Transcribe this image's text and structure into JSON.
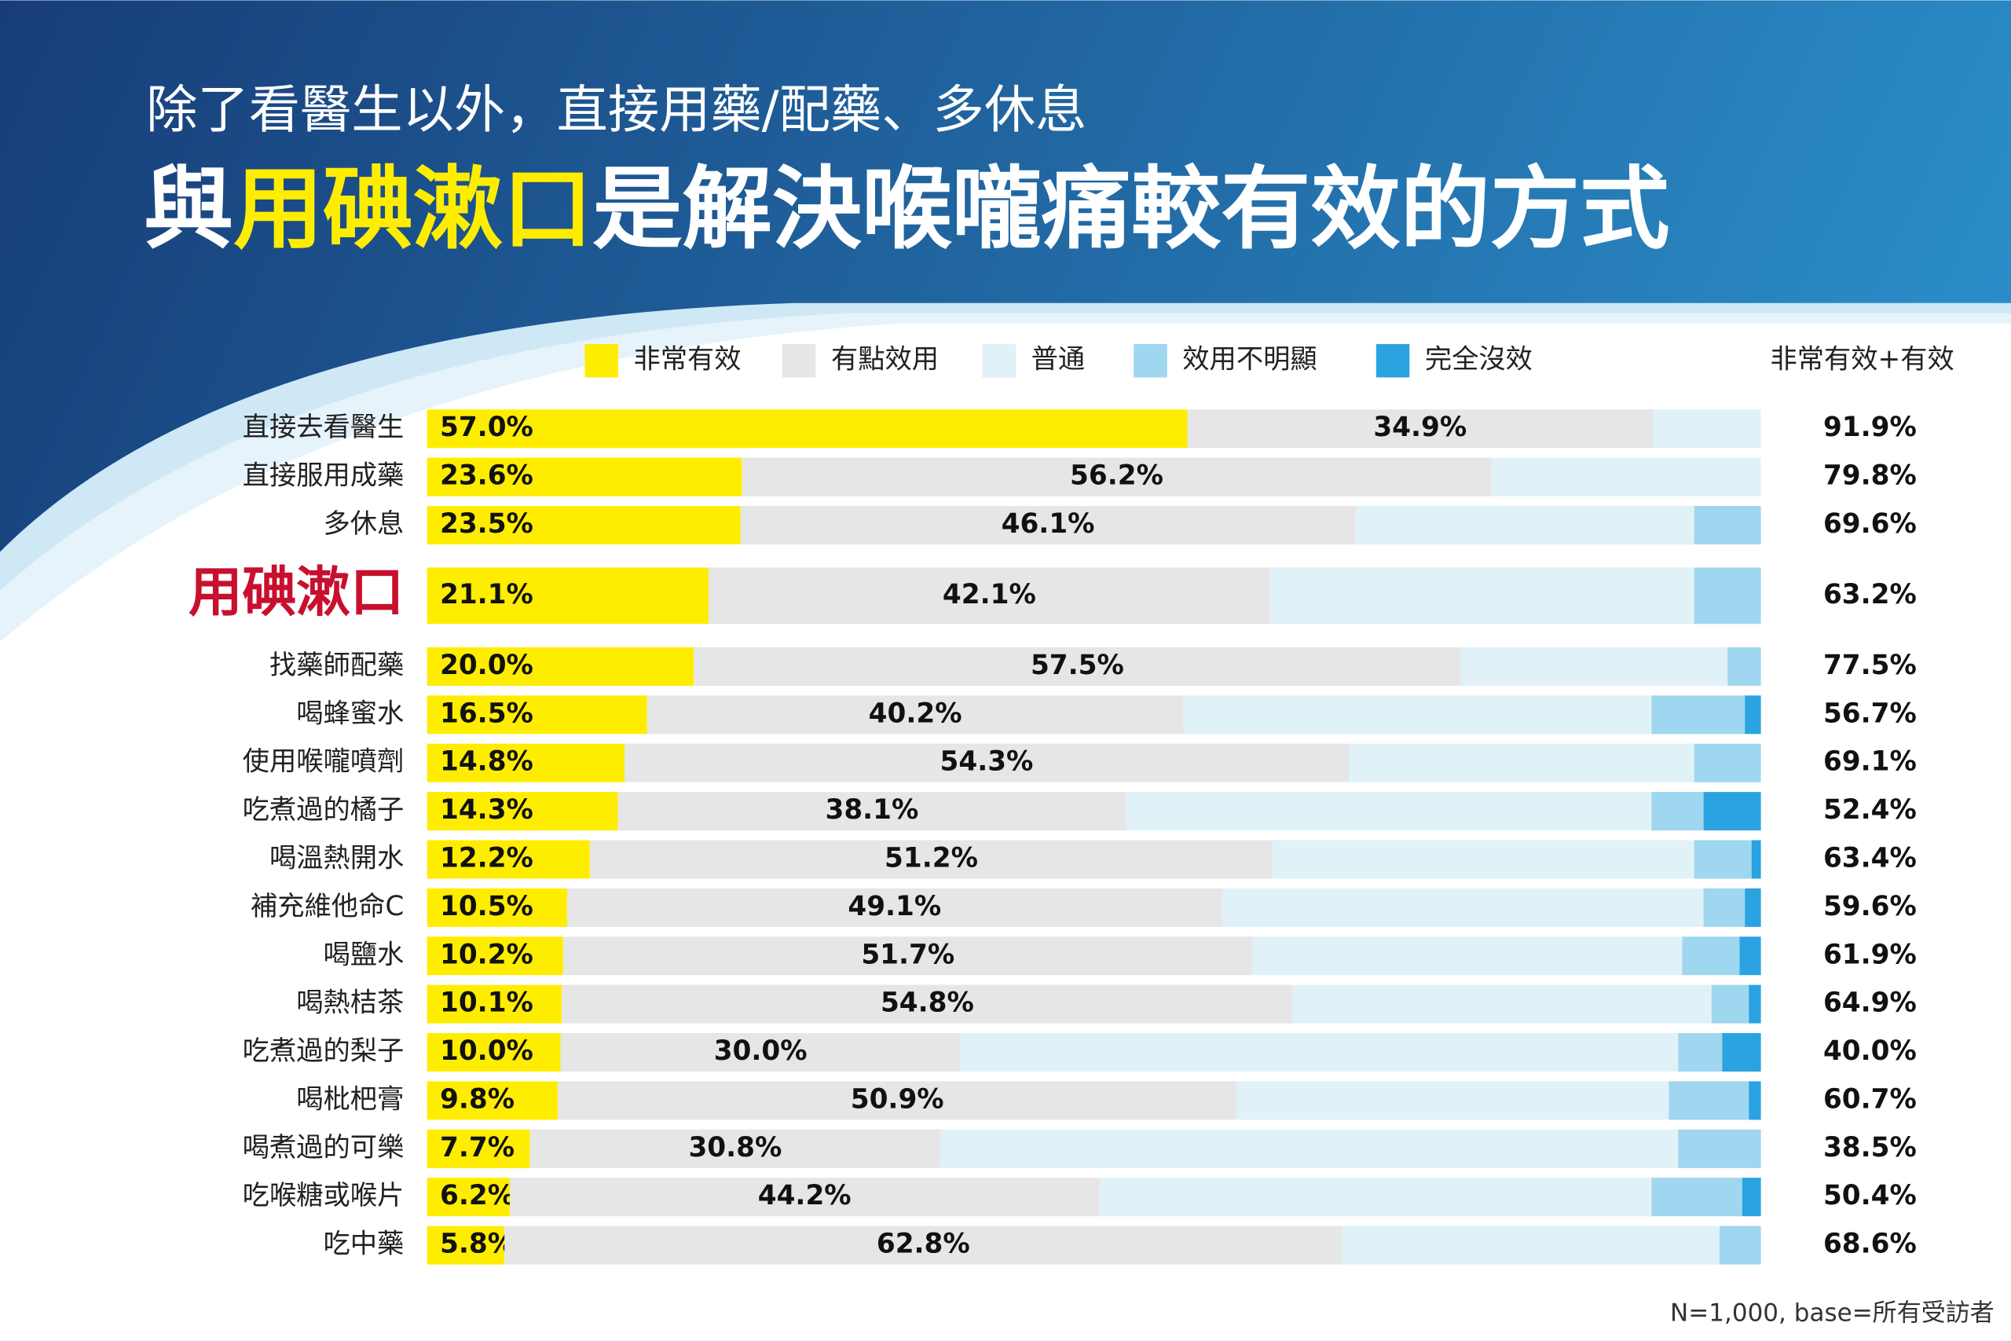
{
  "chart_data": {
    "type": "stacked-bar-100",
    "orientation": "horizontal",
    "subtitle": "除了看醫生以外，直接用藥/配藥、多休息",
    "title_parts": [
      "與",
      "用碘漱口",
      "是解決喉嚨痛較有效的方式"
    ],
    "title_highlight_color": "#ffed00",
    "highlight_category": 3,
    "highlight_color": "#c8102e",
    "note": "N=1,000, base=所有受訪者",
    "xlim": [
      0,
      100
    ],
    "categories": [
      "直接去看醫生",
      "直接服用成藥",
      "多休息",
      "用碘漱口",
      "找藥師配藥",
      "喝蜂蜜水",
      "使用喉嚨噴劑",
      "吃煮過的橘子",
      "喝溫熱開水",
      "補充維他命C",
      "喝鹽水",
      "喝熱桔茶",
      "吃煮過的梨子",
      "喝枇杷膏",
      "喝煮過的可樂",
      "吃喉糖或喉片",
      "吃中藥"
    ],
    "series": [
      {
        "name": "非常有效",
        "color": "#ffed00",
        "values": [
          57.0,
          23.6,
          23.5,
          21.1,
          20.0,
          16.5,
          14.8,
          14.3,
          12.2,
          10.5,
          10.2,
          10.1,
          10.0,
          9.8,
          7.7,
          6.2,
          5.8
        ],
        "value_labels": [
          "57.0%",
          "23.6%",
          "23.5%",
          "21.1%",
          "20.0%",
          "16.5%",
          "14.8%",
          "14.3%",
          "12.2%",
          "10.5%",
          "10.2%",
          "10.1%",
          "10.0%",
          "9.8%",
          "7.7%",
          "6.2%",
          "5.8%"
        ]
      },
      {
        "name": "有點效用",
        "color": "#e6e6e6",
        "values": [
          34.9,
          56.2,
          46.1,
          42.1,
          57.5,
          40.2,
          54.3,
          38.1,
          51.2,
          49.1,
          51.7,
          54.8,
          30.0,
          50.9,
          30.8,
          44.2,
          62.8
        ],
        "value_labels": [
          "34.9%",
          "56.2%",
          "46.1%",
          "42.1%",
          "57.5%",
          "40.2%",
          "54.3%",
          "38.1%",
          "51.2%",
          "49.1%",
          "51.7%",
          "54.8%",
          "30.0%",
          "50.9%",
          "30.8%",
          "44.2%",
          "62.8%"
        ]
      },
      {
        "name": "普通",
        "color": "#e0f1f8",
        "values": [
          8.1,
          20.2,
          25.4,
          31.8,
          20.0,
          35.1,
          25.9,
          39.4,
          31.6,
          36.1,
          32.2,
          31.4,
          53.8,
          32.4,
          55.3,
          41.4,
          28.3
        ]
      },
      {
        "name": "效用不明顯",
        "color": "#9fd6f0",
        "values": [
          0,
          0,
          5.0,
          5.0,
          2.5,
          7.0,
          5.0,
          3.9,
          4.3,
          3.1,
          4.3,
          2.8,
          3.3,
          6.0,
          6.2,
          6.8,
          3.1
        ]
      },
      {
        "name": "完全沒效",
        "color": "#2aa3e0",
        "values": [
          0,
          0,
          0,
          0,
          0,
          1.2,
          0,
          4.3,
          0.7,
          1.2,
          1.6,
          0.9,
          2.9,
          0.9,
          0,
          1.4,
          0
        ]
      }
    ],
    "total_column": {
      "header": "非常有效+有效",
      "values": [
        91.9,
        79.8,
        69.6,
        63.2,
        77.5,
        56.7,
        69.1,
        52.4,
        63.4,
        59.6,
        61.9,
        64.9,
        40.0,
        60.7,
        38.5,
        50.4,
        68.6
      ],
      "value_labels": [
        "91.9%",
        "79.8%",
        "69.6%",
        "63.2%",
        "77.5%",
        "56.7%",
        "69.1%",
        "52.4%",
        "63.4%",
        "59.6%",
        "61.9%",
        "64.9%",
        "40.0%",
        "60.7%",
        "38.5%",
        "50.4%",
        "68.6%"
      ]
    }
  }
}
